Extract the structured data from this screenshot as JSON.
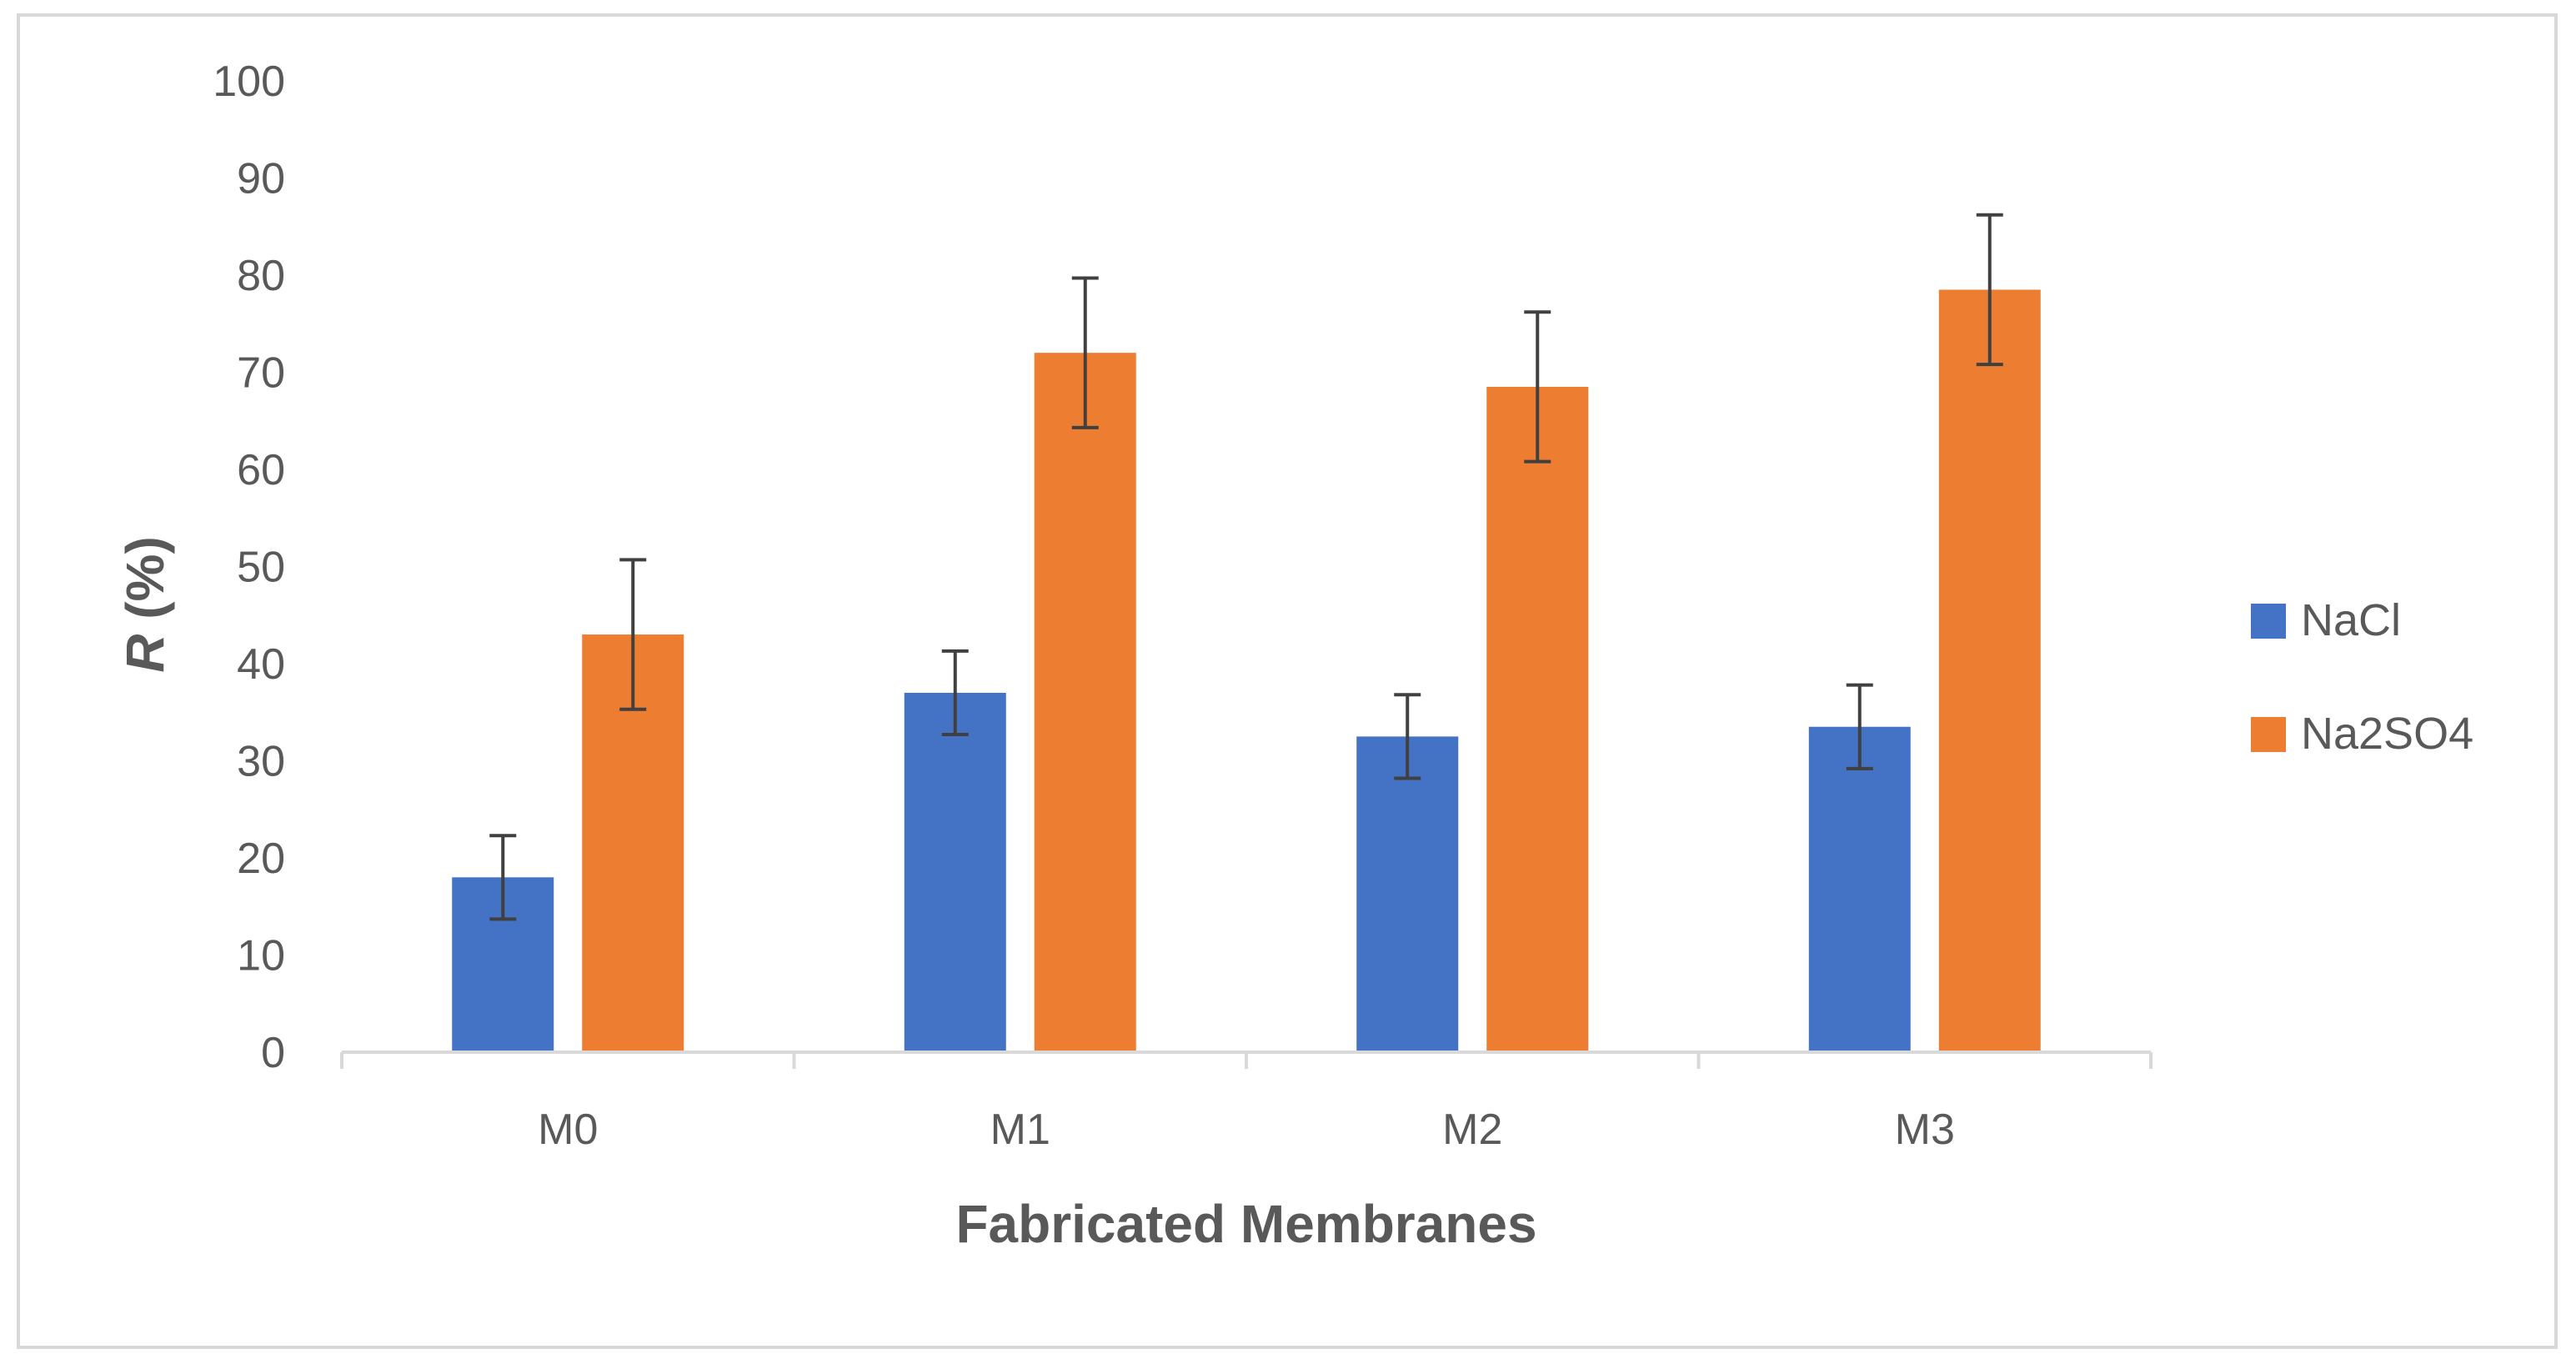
{
  "chart_data": {
    "type": "bar",
    "title": "",
    "xlabel": "Fabricated Membranes",
    "ylabel": "R (%)",
    "ylabel_italic_part": "R",
    "ylabel_rest": " (%)",
    "categories": [
      "M0",
      "M1",
      "M2",
      "M3"
    ],
    "ylim": [
      0,
      100
    ],
    "yticks": [
      0,
      10,
      20,
      30,
      40,
      50,
      60,
      70,
      80,
      90,
      100
    ],
    "grid": false,
    "legend": "right",
    "series": [
      {
        "name": "NaCl",
        "color": "#4472C4",
        "values": [
          18,
          37,
          32.5,
          33.5
        ],
        "error": [
          4.3,
          4.3,
          4.3,
          4.3
        ]
      },
      {
        "name": "Na2SO4",
        "color": "#ED7D31",
        "values": [
          43,
          72,
          68.5,
          78.5
        ],
        "error": [
          7.7,
          7.7,
          7.7,
          7.7
        ]
      }
    ]
  }
}
